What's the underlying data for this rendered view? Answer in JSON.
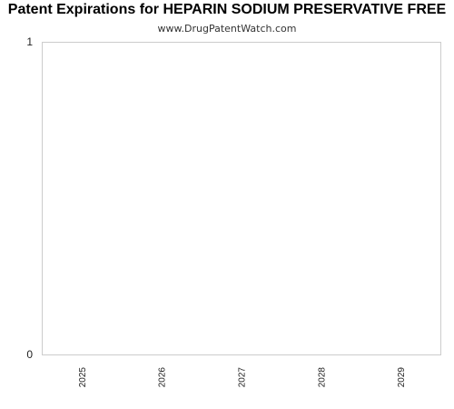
{
  "chart_data": {
    "type": "bar",
    "title": "Patent Expirations for HEPARIN SODIUM PRESERVATIVE FREE",
    "subtitle": "www.DrugPatentWatch.com",
    "categories": [
      "2025",
      "2026",
      "2027",
      "2028",
      "2029"
    ],
    "values": [
      0,
      0,
      0,
      0,
      0
    ],
    "xlabel": "",
    "ylabel": "",
    "ylim": [
      0,
      1
    ],
    "yticks": [
      0,
      1
    ],
    "grid": false,
    "legend": "none",
    "colors": {
      "plot_border": "#cccccc",
      "bar": "#3366cc"
    }
  }
}
